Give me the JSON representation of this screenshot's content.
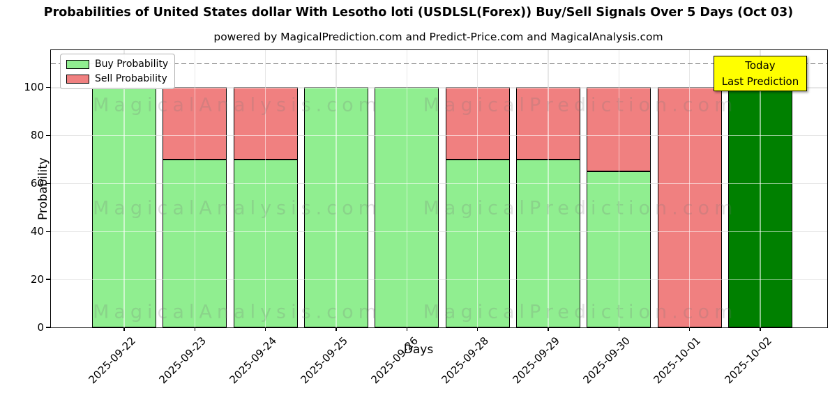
{
  "chart_data": {
    "type": "bar",
    "stacked": true,
    "title": "Probabilities of United States dollar With Lesotho loti (USDLSL(Forex)) Buy/Sell Signals Over 5 Days (Oct 03)",
    "subtitle": "powered by MagicalPrediction.com and Predict-Price.com and MagicalAnalysis.com",
    "xlabel": "Days",
    "ylabel": "Probability",
    "ylim": [
      0,
      115.5
    ],
    "yticks": [
      0,
      20,
      40,
      60,
      80,
      100
    ],
    "grid": true,
    "legend_position": "upper-left",
    "categories": [
      "2025-09-22",
      "2025-09-23",
      "2025-09-24",
      "2025-09-25",
      "2025-09-26",
      "2025-09-28",
      "2025-09-29",
      "2025-09-30",
      "2025-10-01",
      "2025-10-02"
    ],
    "series": [
      {
        "name": "Buy Probability",
        "color": "#90EE90",
        "values": [
          100,
          70,
          70,
          100,
          100,
          70,
          70,
          65,
          0,
          100
        ]
      },
      {
        "name": "Sell Probability",
        "color": "#F08080",
        "values": [
          0,
          30,
          30,
          0,
          0,
          30,
          30,
          35,
          100,
          0
        ]
      }
    ],
    "today_bar": {
      "index": 9,
      "color": "#008000"
    },
    "dashed_line_y": 110,
    "annotation": {
      "line1": "Today",
      "line2": "Last Prediction",
      "bg_color": "#FFFF00"
    },
    "watermark_left": "MagicalAnalysis.com",
    "watermark_right": "MagicalPrediction.com",
    "colors": {
      "buy": "#90EE90",
      "sell": "#F08080",
      "today": "#008000",
      "edge": "#000000",
      "grid": "#c9c9c9",
      "annotation_bg": "#FFFF00"
    }
  }
}
